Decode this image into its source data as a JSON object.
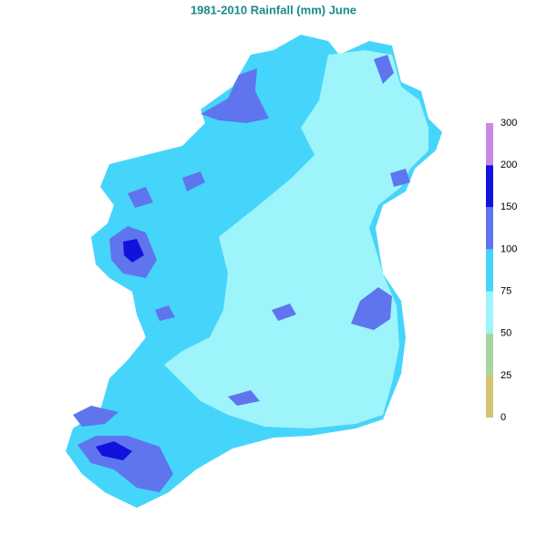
{
  "title": "1981-2010 Rainfall (mm) June",
  "legend": {
    "labels": [
      "0",
      "25",
      "50",
      "75",
      "100",
      "150",
      "200",
      "300"
    ],
    "colors": [
      "#d2c472",
      "#a8d4a4",
      "#9ef4fb",
      "#45d5fb",
      "#5f75ee",
      "#1212de",
      "#c988e6"
    ]
  }
}
